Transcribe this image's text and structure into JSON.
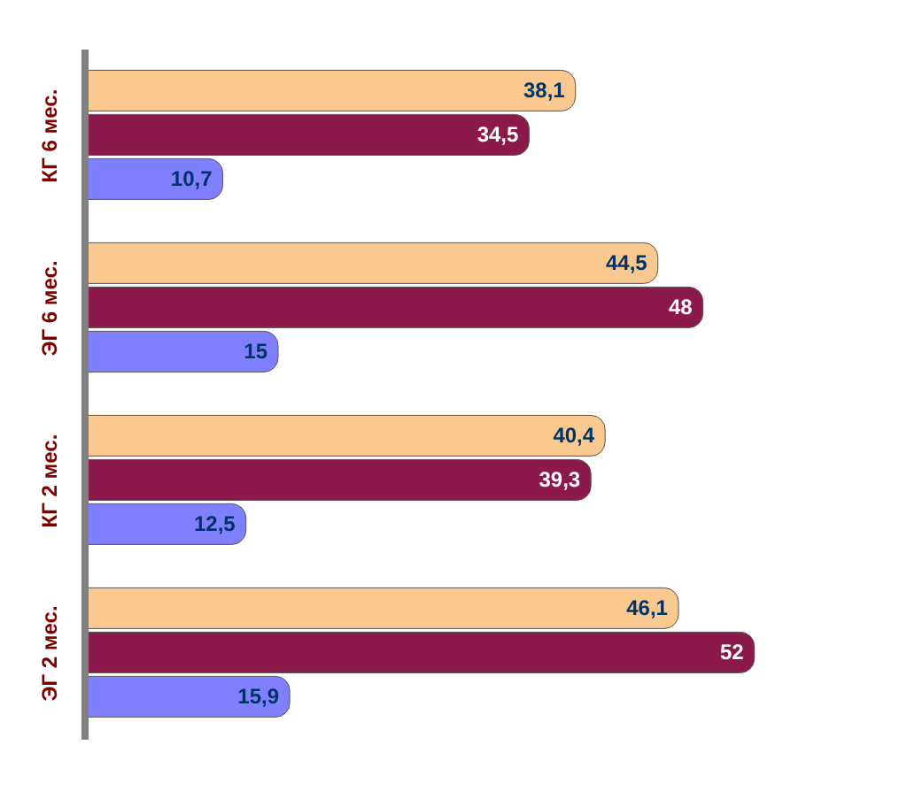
{
  "chart_data": {
    "type": "bar",
    "orientation": "horizontal",
    "categories": [
      "КГ 6 мес.",
      "ЭГ 6 мес.",
      "КГ 2 мес.",
      "ЭГ 2 мес."
    ],
    "series": [
      {
        "color": "#f9c98f",
        "values": [
          38.1,
          44.5,
          40.4,
          46.1
        ],
        "value_labels": [
          "38,1",
          "44,5",
          "40,4",
          "46,1"
        ]
      },
      {
        "color": "#8b1a4a",
        "values": [
          34.5,
          48,
          39.3,
          52
        ],
        "value_labels": [
          "34,5",
          "48",
          "39,3",
          "52"
        ]
      },
      {
        "color": "#8080ff",
        "values": [
          10.7,
          15,
          12.5,
          15.9
        ],
        "value_labels": [
          "10,7",
          "15",
          "12,5",
          "15,9"
        ]
      }
    ],
    "tick_labels": "y"
  }
}
